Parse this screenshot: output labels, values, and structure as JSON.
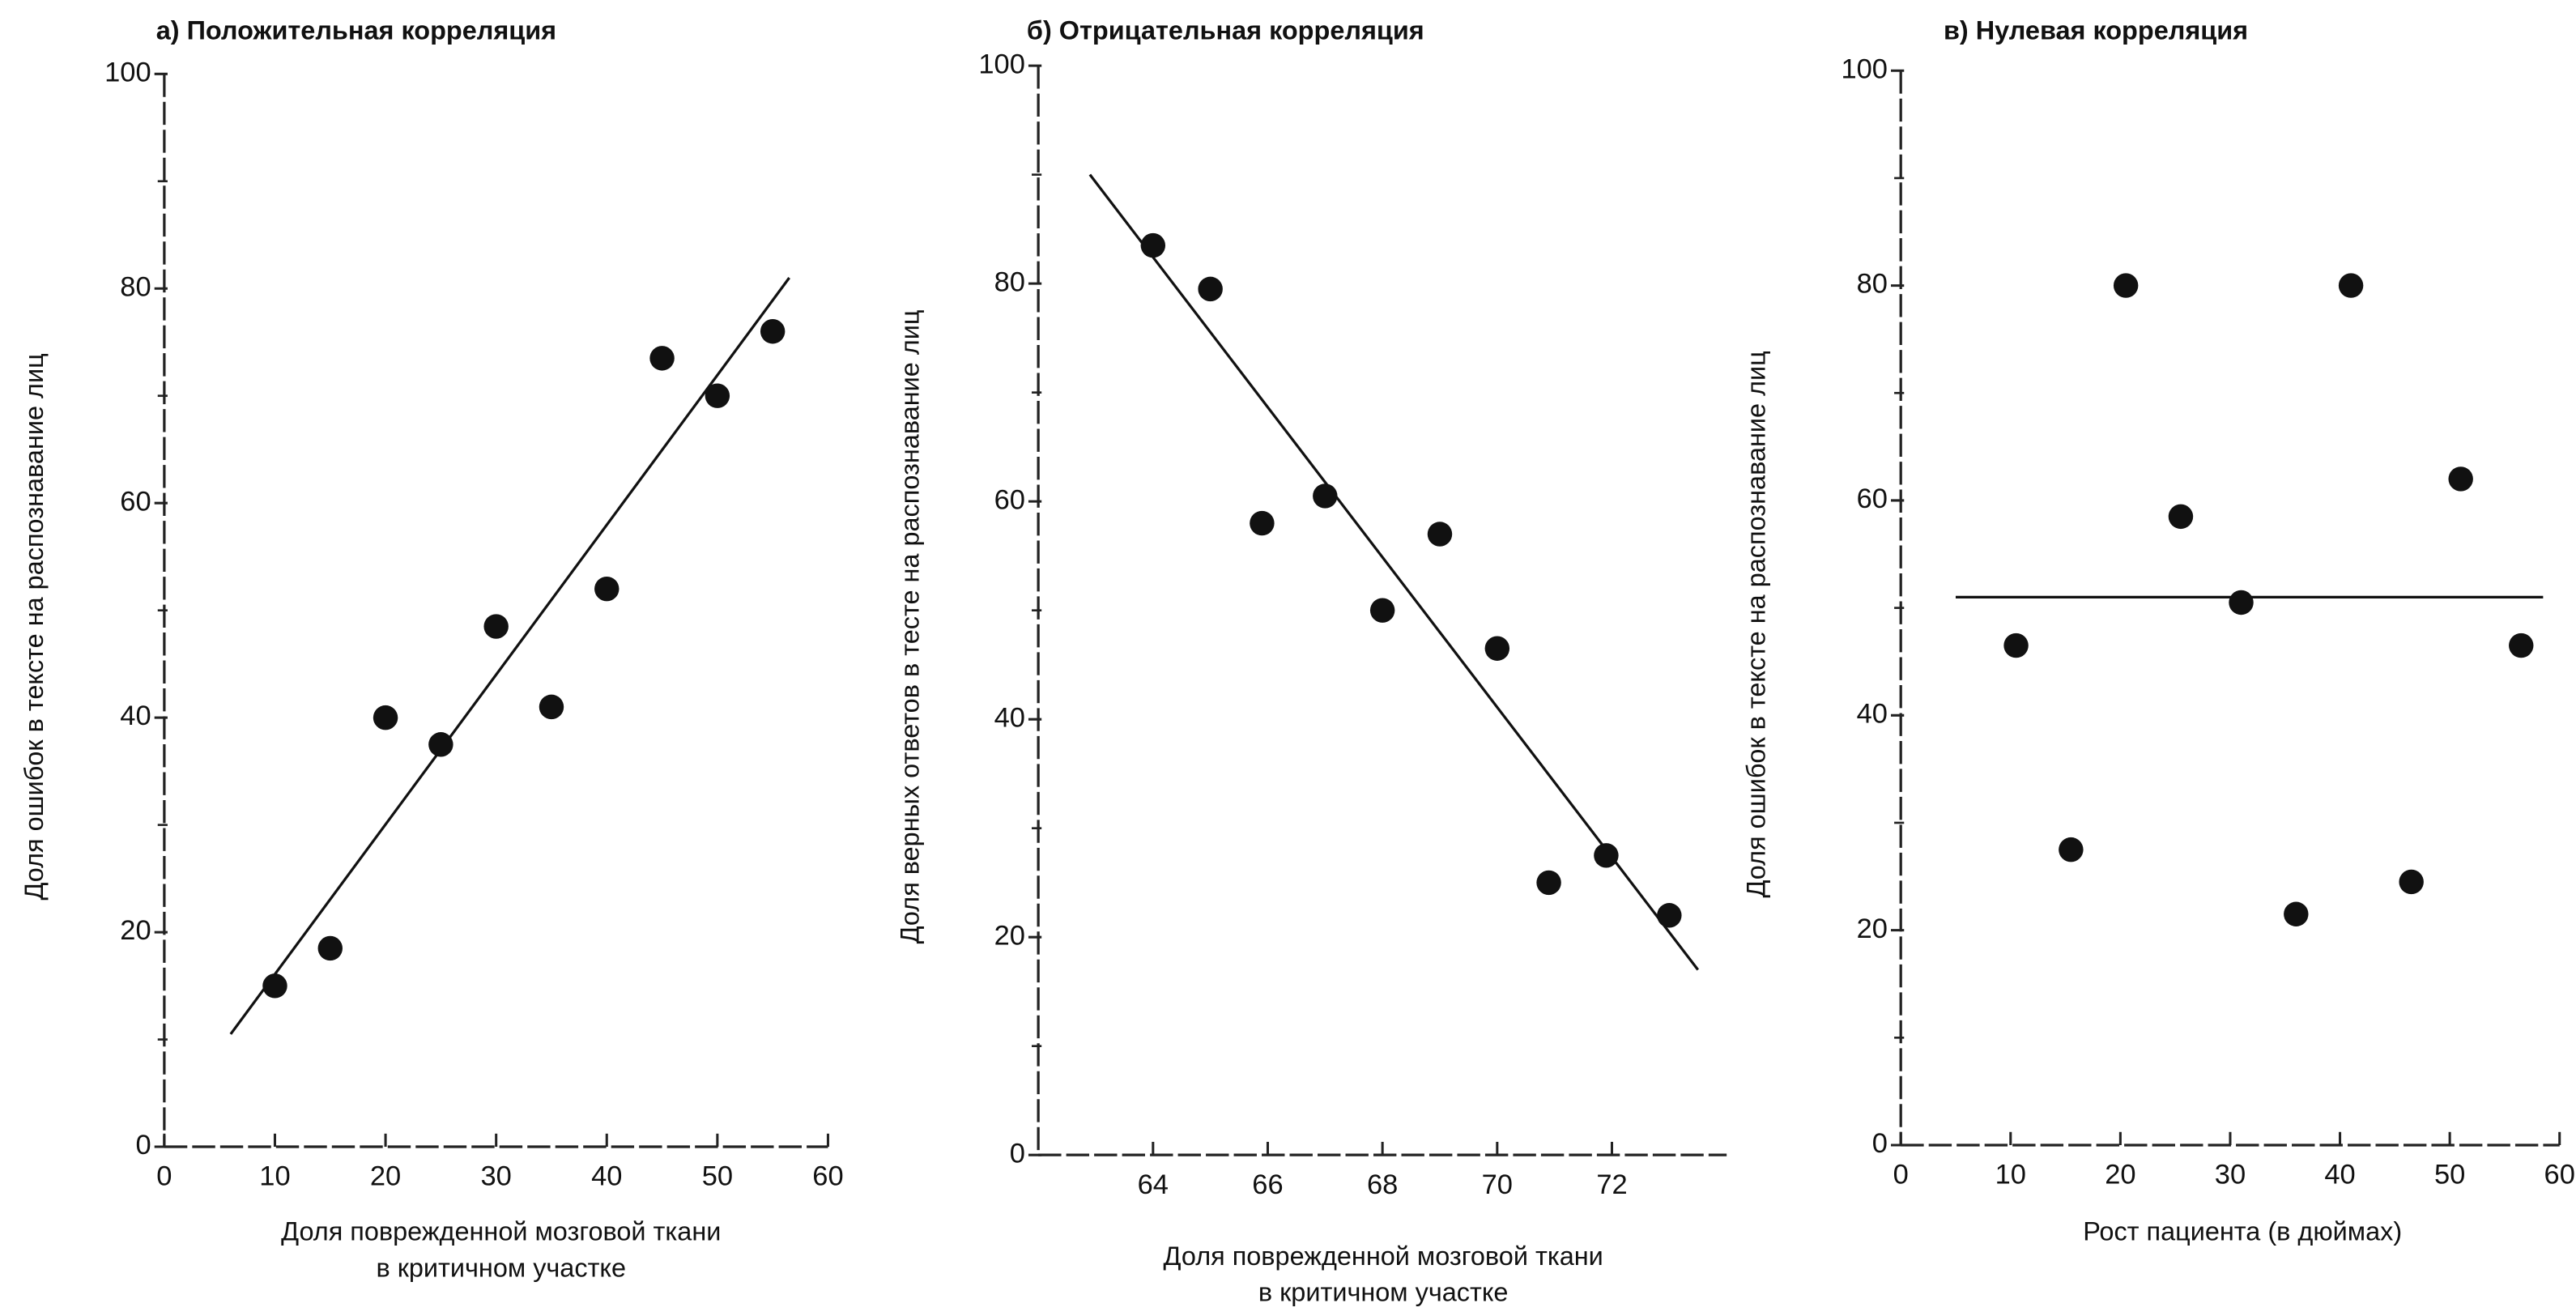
{
  "chart_data": [
    {
      "type": "scatter",
      "title": "а) Положительная корреляция",
      "ylabel": "Доля ошибок в тексте на распознавание лиц",
      "xlabel": [
        "Доля поврежденной мозговой ткани",
        "в критичном участке"
      ],
      "x": [
        10,
        15,
        20,
        25,
        30,
        35,
        40,
        45,
        50,
        55
      ],
      "values": [
        15,
        18.5,
        40,
        37.5,
        48.5,
        41,
        52,
        73.5,
        70,
        76
      ],
      "color": "#111",
      "trend": {
        "x": [
          6,
          56.5
        ],
        "y": [
          10.5,
          81
        ]
      },
      "xlim": [
        0,
        60
      ],
      "xticks": [
        0,
        10,
        20,
        30,
        40,
        50,
        60
      ],
      "ylim": [
        0,
        100
      ],
      "yticks": [
        0,
        20,
        40,
        60,
        80,
        100
      ],
      "yminorticks": [
        10,
        30,
        50,
        70,
        90
      ]
    },
    {
      "type": "scatter",
      "title": "б) Отрицательная корреляция",
      "ylabel": "Доля верных ответов в тесте на распознавание лиц",
      "xlabel": [
        "Доля поврежденной мозговой ткани",
        "в критичном участке"
      ],
      "x": [
        64,
        65,
        65.9,
        67,
        68,
        69,
        70,
        70.9,
        71.9,
        73
      ],
      "values": [
        83.5,
        79.5,
        58,
        60.5,
        50,
        57,
        46.5,
        25,
        27.5,
        22
      ],
      "color": "#111",
      "trend": {
        "x": [
          62.9,
          73.5
        ],
        "y": [
          90,
          17
        ]
      },
      "xlim": [
        62,
        74
      ],
      "xticks": [
        64,
        66,
        68,
        70,
        72
      ],
      "ylim": [
        0,
        100
      ],
      "yticks": [
        0,
        20,
        40,
        60,
        80,
        100
      ],
      "yminorticks": [
        10,
        30,
        50,
        70,
        90
      ]
    },
    {
      "type": "scatter",
      "title": "в) Нулевая корреляция",
      "ylabel": "Доля ошибок в тексте на распознавание лиц",
      "xlabel": [
        "Рост пациента (в дюймах)"
      ],
      "x": [
        10.5,
        15.5,
        20.5,
        25.5,
        31,
        36,
        41,
        46.5,
        51,
        56.5
      ],
      "values": [
        46.5,
        27.5,
        80,
        58.5,
        50.5,
        21.5,
        80,
        24.5,
        62,
        46.5
      ],
      "color": "#111",
      "trend": {
        "x": [
          5,
          58.5
        ],
        "y": [
          51,
          51
        ]
      },
      "xlim": [
        0,
        60
      ],
      "xticks": [
        0,
        10,
        20,
        30,
        40,
        50,
        60
      ],
      "ylim": [
        0,
        100
      ],
      "yticks": [
        0,
        20,
        40,
        60,
        80,
        100
      ],
      "yminorticks": [
        10,
        30,
        50,
        70,
        90
      ]
    }
  ]
}
